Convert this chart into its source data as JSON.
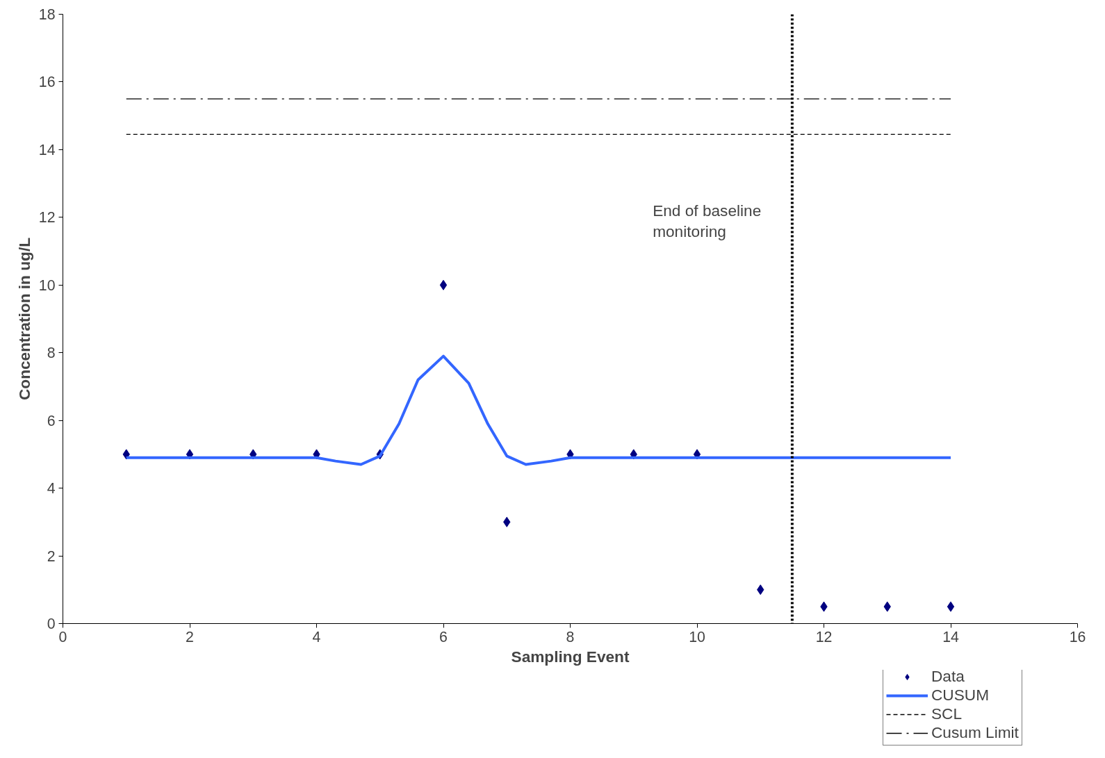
{
  "chart_data": {
    "type": "line",
    "xlabel": "Sampling Event",
    "ylabel": "Concentration in ug/L",
    "x": [
      1,
      2,
      3,
      4,
      5,
      6,
      7,
      8,
      9,
      10,
      11,
      12,
      13,
      14
    ],
    "series": [
      {
        "name": "Data",
        "type": "scatter",
        "color": "#000080",
        "marker": "diamond",
        "values": [
          5,
          5,
          5,
          5,
          5,
          10,
          3,
          5,
          5,
          5,
          1,
          0.5,
          0.5,
          0.5
        ]
      },
      {
        "name": "CUSUM",
        "color": "#3366ff",
        "line_style": "solid",
        "x": [
          1,
          2,
          3,
          4,
          4.3,
          4.7,
          5,
          5.3,
          5.6,
          6,
          6.4,
          6.7,
          7,
          7.3,
          7.7,
          8,
          9,
          10,
          11,
          12,
          13,
          14
        ],
        "values": [
          4.9,
          4.9,
          4.9,
          4.9,
          4.8,
          4.7,
          4.95,
          5.9,
          7.2,
          7.9,
          7.1,
          5.9,
          4.95,
          4.7,
          4.8,
          4.9,
          4.9,
          4.9,
          4.9,
          4.9,
          4.9,
          4.9
        ]
      },
      {
        "name": "SCL",
        "color": "#000000",
        "line_style": "dashed",
        "x": [
          1,
          14
        ],
        "values": [
          14.45,
          14.45
        ]
      },
      {
        "name": "Cusum Limit",
        "color": "#000000",
        "line_style": "dashdot",
        "x": [
          1,
          14
        ],
        "values": [
          15.5,
          15.5
        ]
      }
    ],
    "ref_lines": [
      {
        "axis": "x",
        "value": 11.5,
        "label": "End of baseline monitoring",
        "color": "#000000",
        "line_style": "dotted"
      }
    ],
    "xlim": [
      0,
      16
    ],
    "xticks": [
      0,
      2,
      4,
      6,
      8,
      10,
      12,
      14,
      16
    ],
    "ylim": [
      0,
      18
    ],
    "yticks": [
      0,
      2,
      4,
      6,
      8,
      10,
      12,
      14,
      16,
      18
    ],
    "grid": false,
    "legend": "bottom right"
  }
}
